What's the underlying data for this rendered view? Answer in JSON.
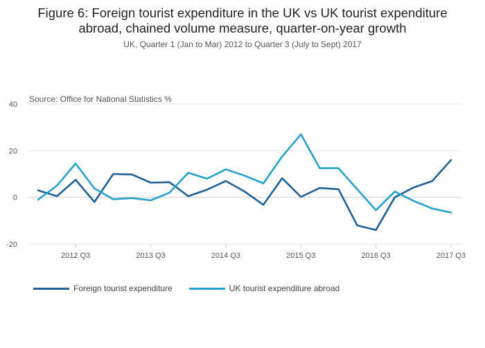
{
  "chart_data": {
    "type": "line",
    "title_line1": "Figure 6: Foreign tourist expenditure in the UK vs UK tourist expenditure",
    "title_line2": "abroad, chained volume measure, quarter-on-year growth",
    "subtitle": "UK, Quarter 1 (Jan to Mar) 2012 to Quarter 3 (July to Sept) 2017",
    "source": "Source: Office for National Statistics %",
    "ylim": [
      -20,
      40
    ],
    "yticks": [
      "40",
      "20",
      "0",
      "-20"
    ],
    "ytick_values": [
      40,
      20,
      0,
      -20
    ],
    "x_tick_labels": [
      "2012 Q3",
      "2013 Q3",
      "2014 Q3",
      "2015 Q3",
      "2016 Q3",
      "2017 Q3"
    ],
    "x_tick_indices": [
      2,
      6,
      10,
      14,
      18,
      22
    ],
    "categories": [
      "2012 Q1",
      "2012 Q2",
      "2012 Q3",
      "2012 Q4",
      "2013 Q1",
      "2013 Q2",
      "2013 Q3",
      "2013 Q4",
      "2014 Q1",
      "2014 Q2",
      "2014 Q3",
      "2014 Q4",
      "2015 Q1",
      "2015 Q2",
      "2015 Q3",
      "2015 Q4",
      "2016 Q1",
      "2016 Q2",
      "2016 Q3",
      "2016 Q4",
      "2017 Q1",
      "2017 Q2",
      "2017 Q3"
    ],
    "grid": true,
    "legend_position": "bottom-left",
    "series": [
      {
        "name": "Foreign tourist expenditure",
        "color": "#206095",
        "values": [
          3,
          0.5,
          7.5,
          -2,
          10,
          9.8,
          6.3,
          6.5,
          0.5,
          3.3,
          7,
          2.5,
          -3.2,
          8.2,
          0.2,
          4,
          3.5,
          -12,
          -14,
          0,
          4.2,
          7,
          16
        ]
      },
      {
        "name": "UK tourist expenditure abroad",
        "color": "#27a0cc",
        "values": [
          -1,
          5,
          14.5,
          3.8,
          -0.8,
          -0.3,
          -1.3,
          2,
          10.5,
          8,
          12,
          9.3,
          6,
          17.5,
          27,
          12.5,
          12.5,
          3.5,
          -5.5,
          2.5,
          -1.5,
          -4.8,
          -6.5
        ]
      }
    ]
  }
}
